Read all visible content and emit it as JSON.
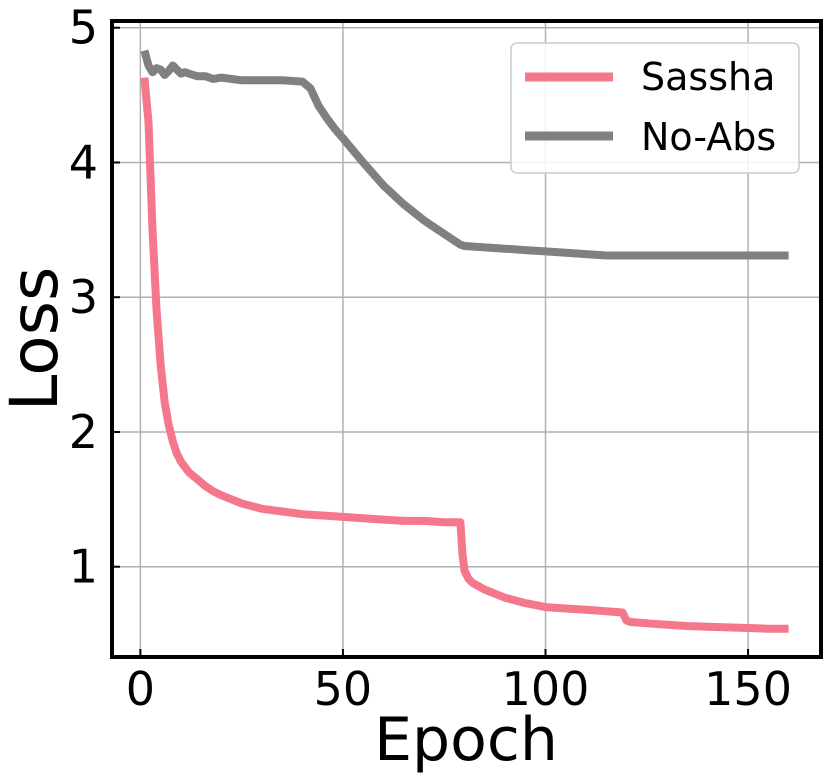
{
  "chart_data": {
    "type": "line",
    "xlabel": "Epoch",
    "ylabel": "Loss",
    "xlim": [
      -7,
      168
    ],
    "ylim": [
      0.33,
      5.05
    ],
    "xticks": [
      0,
      50,
      100,
      150
    ],
    "yticks": [
      1,
      2,
      3,
      4,
      5
    ],
    "xtick_labels": [
      "0",
      "50",
      "100",
      "150"
    ],
    "ytick_labels": [
      "1",
      "2",
      "3",
      "4",
      "5"
    ],
    "grid": true,
    "legend_position": "top-right",
    "series": [
      {
        "name": "Sassha",
        "color": "#f4778c",
        "x": [
          1,
          2,
          3,
          4,
          5,
          6,
          7,
          8,
          9,
          10,
          12,
          14,
          16,
          18,
          20,
          25,
          30,
          35,
          40,
          45,
          50,
          55,
          60,
          65,
          70,
          75,
          78,
          79,
          79.5,
          80,
          81,
          82,
          85,
          90,
          95,
          100,
          105,
          110,
          115,
          119,
          120,
          121,
          125,
          130,
          135,
          140,
          145,
          150,
          155,
          160
        ],
        "y": [
          4.63,
          4.3,
          3.5,
          2.9,
          2.5,
          2.22,
          2.05,
          1.93,
          1.84,
          1.78,
          1.7,
          1.65,
          1.6,
          1.56,
          1.53,
          1.47,
          1.43,
          1.41,
          1.39,
          1.38,
          1.37,
          1.36,
          1.35,
          1.34,
          1.34,
          1.33,
          1.33,
          1.33,
          1.1,
          0.97,
          0.91,
          0.88,
          0.83,
          0.77,
          0.73,
          0.7,
          0.69,
          0.68,
          0.67,
          0.66,
          0.6,
          0.59,
          0.58,
          0.57,
          0.56,
          0.555,
          0.55,
          0.545,
          0.54,
          0.54
        ]
      },
      {
        "name": "No-Abs",
        "color": "#808080",
        "x": [
          1,
          2,
          3,
          4,
          5,
          6,
          7,
          8,
          9,
          10,
          11,
          12,
          14,
          16,
          18,
          20,
          25,
          30,
          35,
          40,
          42,
          44,
          46,
          48,
          50,
          55,
          60,
          65,
          70,
          75,
          79,
          80,
          85,
          90,
          95,
          100,
          105,
          110,
          115,
          120,
          125,
          130,
          135,
          140,
          145,
          150,
          155,
          160
        ],
        "y": [
          4.83,
          4.72,
          4.67,
          4.7,
          4.69,
          4.65,
          4.68,
          4.72,
          4.69,
          4.66,
          4.67,
          4.66,
          4.64,
          4.64,
          4.62,
          4.63,
          4.61,
          4.61,
          4.61,
          4.6,
          4.55,
          4.42,
          4.33,
          4.25,
          4.18,
          4.0,
          3.83,
          3.69,
          3.57,
          3.47,
          3.39,
          3.38,
          3.37,
          3.36,
          3.35,
          3.34,
          3.33,
          3.32,
          3.31,
          3.31,
          3.31,
          3.31,
          3.31,
          3.31,
          3.31,
          3.31,
          3.31,
          3.31
        ]
      }
    ]
  }
}
